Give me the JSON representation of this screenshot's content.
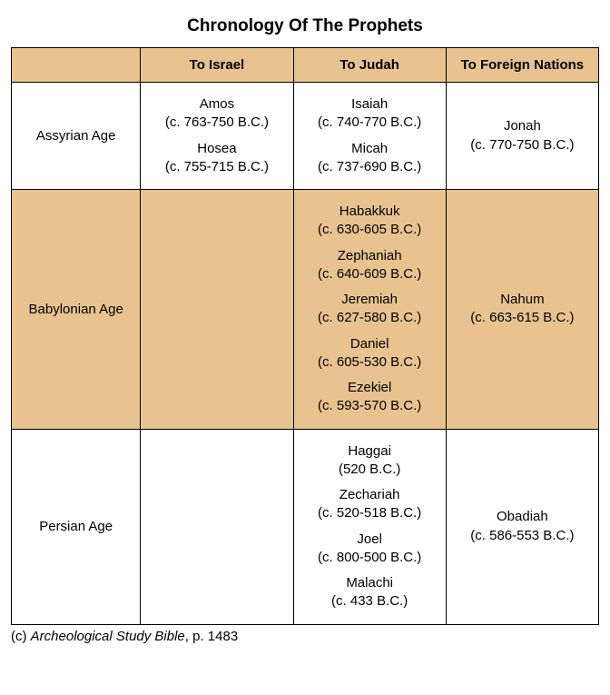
{
  "title": "Chronology Of The Prophets",
  "columns": {
    "blank": "",
    "israel": "To Israel",
    "judah": "To Judah",
    "foreign": "To Foreign Nations"
  },
  "rows": {
    "assyrian": {
      "age": "Assyrian Age",
      "israel": [
        {
          "name": "Amos",
          "date": "(c. 763-750 B.C.)"
        },
        {
          "name": "Hosea",
          "date": "(c. 755-715 B.C.)"
        }
      ],
      "judah": [
        {
          "name": "Isaiah",
          "date": "(c. 740-770 B.C.)"
        },
        {
          "name": "Micah",
          "date": "(c. 737-690 B.C.)"
        }
      ],
      "foreign": [
        {
          "name": "Jonah",
          "date": "(c. 770-750 B.C.)"
        }
      ]
    },
    "babylonian": {
      "age": "Babylonian Age",
      "israel": [],
      "judah": [
        {
          "name": "Habakkuk",
          "date": "(c. 630-605 B.C.)"
        },
        {
          "name": "Zephaniah",
          "date": "(c. 640-609 B.C.)"
        },
        {
          "name": "Jeremiah",
          "date": "(c. 627-580 B.C.)"
        },
        {
          "name": "Daniel",
          "date": "(c. 605-530 B.C.)"
        },
        {
          "name": "Ezekiel",
          "date": "(c. 593-570 B.C.)"
        }
      ],
      "foreign": [
        {
          "name": "Nahum",
          "date": "(c. 663-615 B.C.)"
        }
      ]
    },
    "persian": {
      "age": "Persian Age",
      "israel": [],
      "judah": [
        {
          "name": "Haggai",
          "date": "(520 B.C.)"
        },
        {
          "name": "Zechariah",
          "date": "(c. 520-518 B.C.)"
        },
        {
          "name": "Joel",
          "date": "(c. 800-500 B.C.)"
        },
        {
          "name": "Malachi",
          "date": "(c. 433 B.C.)"
        }
      ],
      "foreign": [
        {
          "name": "Obadiah",
          "date": "(c. 586-553 B.C.)"
        }
      ]
    }
  },
  "source": {
    "prefix": "(c) ",
    "title": "Archeological Study Bible",
    "suffix": ", p. 1483"
  },
  "colors": {
    "header_bg": "#e8c38f",
    "shaded_row_bg": "#e8c38f",
    "border": "#000000",
    "text": "#000000",
    "page_bg": "#ffffff"
  },
  "typography": {
    "title_fontsize": 19,
    "cell_fontsize": 15
  }
}
